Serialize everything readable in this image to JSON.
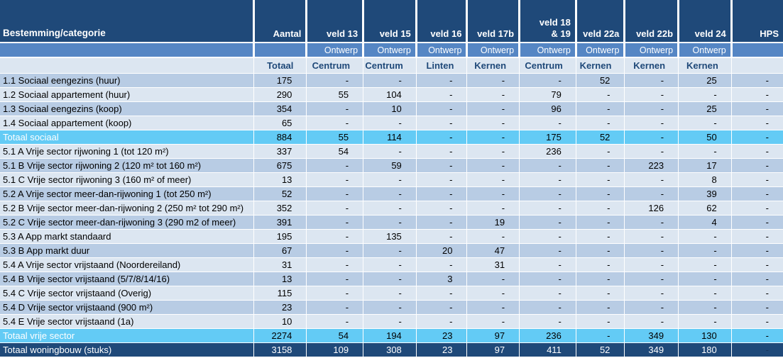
{
  "table": {
    "col1_header": "Bestemming/categorie",
    "columns": [
      {
        "label": "Aantal",
        "sub": "",
        "area": "Totaal"
      },
      {
        "label": "veld 13",
        "sub": "Ontwerp",
        "area": "Centrum"
      },
      {
        "label": "veld 15",
        "sub": "Ontwerp",
        "area": "Centrum"
      },
      {
        "label": "veld 16",
        "sub": "Ontwerp",
        "area": "Linten"
      },
      {
        "label": "veld 17b",
        "sub": "Ontwerp",
        "area": "Kernen"
      },
      {
        "label": "veld 18\n& 19",
        "sub": "Ontwerp",
        "area": "Centrum"
      },
      {
        "label": "veld 22a",
        "sub": "Ontwerp",
        "area": "Kernen"
      },
      {
        "label": "veld 22b",
        "sub": "Ontwerp",
        "area": "Kernen"
      },
      {
        "label": "veld 24",
        "sub": "Ontwerp",
        "area": "Kernen"
      },
      {
        "label": "HPS",
        "sub": "",
        "area": ""
      }
    ],
    "rows": [
      {
        "label": "1.1 Sociaal eengezins (huur)",
        "kind": "data",
        "shade": "b",
        "values": [
          "175",
          "-",
          "-",
          "-",
          "-",
          "-",
          "52",
          "-",
          "25",
          "-"
        ]
      },
      {
        "label": "1.2 Sociaal appartement (huur)",
        "kind": "data",
        "shade": "a",
        "values": [
          "290",
          "55",
          "104",
          "-",
          "-",
          "79",
          "-",
          "-",
          "-",
          "-"
        ]
      },
      {
        "label": "1.3 Sociaal eengezins (koop)",
        "kind": "data",
        "shade": "b",
        "values": [
          "354",
          "-",
          "10",
          "-",
          "-",
          "96",
          "-",
          "-",
          "25",
          "-"
        ]
      },
      {
        "label": "1.4 Sociaal appartement (koop)",
        "kind": "data",
        "shade": "a",
        "values": [
          "65",
          "-",
          "-",
          "-",
          "-",
          "-",
          "-",
          "-",
          "-",
          "-"
        ]
      },
      {
        "label": "Totaal sociaal",
        "kind": "subtotal",
        "shade": "",
        "values": [
          "884",
          "55",
          "114",
          "-",
          "-",
          "175",
          "52",
          "-",
          "50",
          "-"
        ]
      },
      {
        "label": "5.1 A Vrije sector rijwoning 1 (tot 120 m²)",
        "kind": "data",
        "shade": "a",
        "values": [
          "337",
          "54",
          "-",
          "-",
          "-",
          "236",
          "-",
          "-",
          "-",
          "-"
        ]
      },
      {
        "label": "5.1 B Vrije sector rijwoning 2 (120 m² tot 160 m²)",
        "kind": "data",
        "shade": "b",
        "values": [
          "675",
          "-",
          "59",
          "-",
          "-",
          "-",
          "-",
          "223",
          "17",
          "-"
        ]
      },
      {
        "label": "5.1 C Vrije sector rijwoning 3 (160 m² of meer)",
        "kind": "data",
        "shade": "a",
        "values": [
          "13",
          "-",
          "-",
          "-",
          "-",
          "-",
          "-",
          "-",
          "8",
          "-"
        ]
      },
      {
        "label": "5.2 A Vrije sector meer-dan-rijwoning 1 (tot 250 m²)",
        "kind": "data",
        "shade": "b",
        "values": [
          "52",
          "-",
          "-",
          "-",
          "-",
          "-",
          "-",
          "-",
          "39",
          "-"
        ]
      },
      {
        "label": "5.2 B Vrije sector meer-dan-rijwoning 2 (250 m² tot 290 m²)",
        "kind": "data",
        "shade": "a",
        "values": [
          "352",
          "-",
          "-",
          "-",
          "-",
          "-",
          "-",
          "126",
          "62",
          "-"
        ]
      },
      {
        "label": "5.2 C Vrije sector meer-dan-rijwoning 3 (290 m2 of meer)",
        "kind": "data",
        "shade": "b",
        "values": [
          "391",
          "-",
          "-",
          "-",
          "19",
          "-",
          "-",
          "-",
          "4",
          "-"
        ]
      },
      {
        "label": "5.3 A App markt standaard",
        "kind": "data",
        "shade": "a",
        "values": [
          "195",
          "-",
          "135",
          "-",
          "-",
          "-",
          "-",
          "-",
          "-",
          "-"
        ]
      },
      {
        "label": "5.3 B App markt duur",
        "kind": "data",
        "shade": "b",
        "values": [
          "67",
          "-",
          "-",
          "20",
          "47",
          "-",
          "-",
          "-",
          "-",
          "-"
        ]
      },
      {
        "label": "5.4 A Vrije sector vrijstaand (Noordereiland)",
        "kind": "data",
        "shade": "a",
        "values": [
          "31",
          "-",
          "-",
          "-",
          "31",
          "-",
          "-",
          "-",
          "-",
          "-"
        ]
      },
      {
        "label": "5.4 B Vrije sector vrijstaand (5/7/8/14/16)",
        "kind": "data",
        "shade": "b",
        "values": [
          "13",
          "-",
          "-",
          "3",
          "-",
          "-",
          "-",
          "-",
          "-",
          "-"
        ]
      },
      {
        "label": "5.4 C Vrije sector vrijstaand (Overig)",
        "kind": "data",
        "shade": "a",
        "values": [
          "115",
          "-",
          "-",
          "-",
          "-",
          "-",
          "-",
          "-",
          "-",
          "-"
        ]
      },
      {
        "label": "5.4 D Vrije sector vrijstaand (900 m²)",
        "kind": "data",
        "shade": "b",
        "values": [
          "23",
          "-",
          "-",
          "-",
          "-",
          "-",
          "-",
          "-",
          "-",
          "-"
        ]
      },
      {
        "label": "5.4 E Vrije sector vrijstaand (1a)",
        "kind": "data",
        "shade": "a",
        "values": [
          "10",
          "-",
          "-",
          "-",
          "-",
          "-",
          "-",
          "-",
          "-",
          "-"
        ]
      },
      {
        "label": "Totaal vrije sector",
        "kind": "subtotal",
        "shade": "",
        "values": [
          "2274",
          "54",
          "194",
          "23",
          "97",
          "236",
          "-",
          "349",
          "130",
          "-"
        ]
      },
      {
        "label": "Totaal woningbouw (stuks)",
        "kind": "grandtotal",
        "shade": "",
        "values": [
          "3158",
          "109",
          "308",
          "23",
          "97",
          "411",
          "52",
          "349",
          "180",
          "-"
        ]
      }
    ],
    "colors": {
      "header_navy": "#1F4979",
      "header_medium_blue": "#5586C4",
      "stripe_light": "#DCE6F1",
      "stripe_medium": "#B8CCE4",
      "subtotal_cyan": "#63CBF5",
      "header_text_blue": "#1F4979"
    }
  }
}
